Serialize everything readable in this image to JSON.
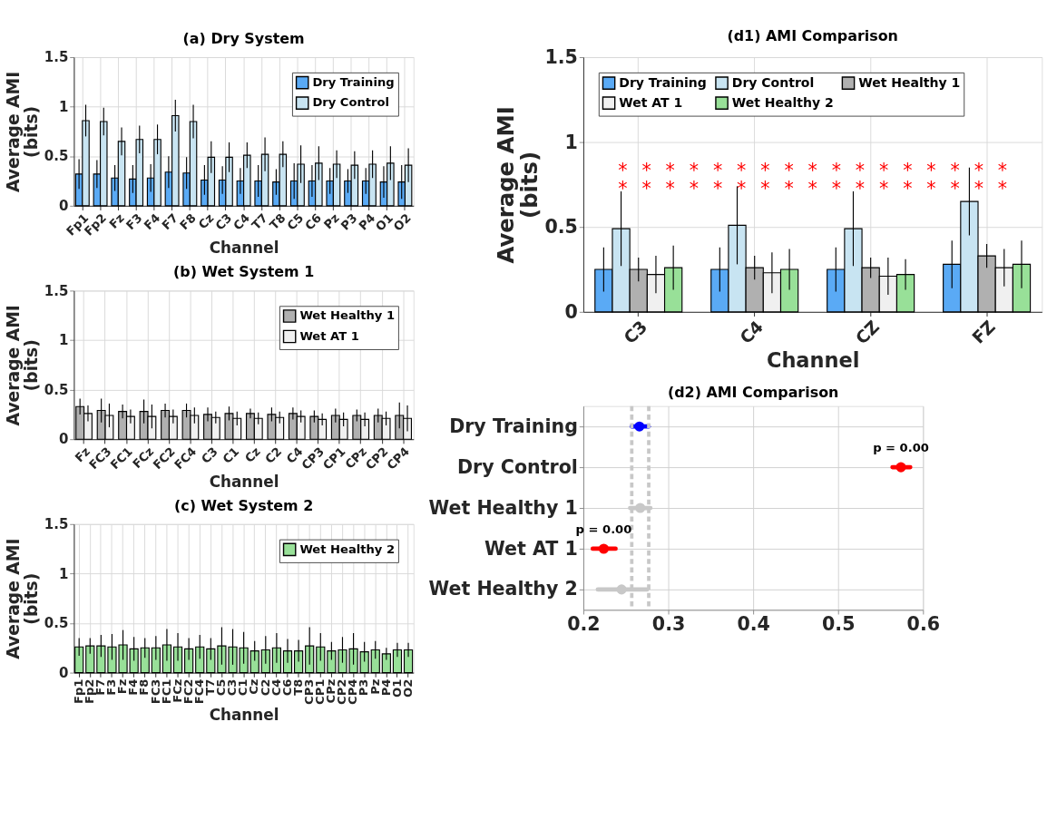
{
  "chart_data": [
    {
      "type": "bar",
      "title": "(a) Dry System",
      "xlabel": "Channel",
      "ylabel": "Average AMI\n(bits)",
      "categories": [
        "Fp1",
        "Fp2",
        "Fz",
        "F3",
        "F4",
        "F7",
        "F8",
        "Cz",
        "C3",
        "C4",
        "T7",
        "T8",
        "C5",
        "C6",
        "Pz",
        "P3",
        "P4",
        "O1",
        "O2"
      ],
      "series": [
        {
          "name": "Dry Training",
          "color": "#5aaaf5",
          "values": [
            0.32,
            0.32,
            0.28,
            0.27,
            0.28,
            0.34,
            0.33,
            0.26,
            0.26,
            0.25,
            0.25,
            0.24,
            0.25,
            0.25,
            0.25,
            0.25,
            0.25,
            0.24,
            0.24
          ],
          "errors": [
            0.15,
            0.14,
            0.13,
            0.14,
            0.14,
            0.16,
            0.16,
            0.15,
            0.14,
            0.13,
            0.16,
            0.13,
            0.18,
            0.16,
            0.13,
            0.12,
            0.13,
            0.16,
            0.17
          ]
        },
        {
          "name": "Dry Control",
          "color": "#c8e4f2",
          "values": [
            0.86,
            0.85,
            0.65,
            0.67,
            0.67,
            0.91,
            0.85,
            0.49,
            0.49,
            0.51,
            0.52,
            0.52,
            0.42,
            0.43,
            0.42,
            0.41,
            0.42,
            0.43,
            0.41
          ],
          "errors": [
            0.16,
            0.14,
            0.14,
            0.14,
            0.15,
            0.16,
            0.17,
            0.16,
            0.15,
            0.13,
            0.17,
            0.13,
            0.19,
            0.17,
            0.14,
            0.14,
            0.14,
            0.17,
            0.17
          ]
        }
      ],
      "ylim": [
        0,
        1.5
      ],
      "yticks": [
        0,
        0.5,
        1,
        1.5
      ],
      "grid": true,
      "legend": "top right"
    },
    {
      "type": "bar",
      "title": "(b) Wet System 1",
      "xlabel": "Channel",
      "ylabel": "Average AMI\n(bits)",
      "categories": [
        "Fz",
        "FC3",
        "FC1",
        "FCz",
        "FC2",
        "FC4",
        "C3",
        "C1",
        "Cz",
        "C2",
        "C4",
        "CP3",
        "CP1",
        "CPz",
        "CP2",
        "CP4"
      ],
      "series": [
        {
          "name": "Wet Healthy 1",
          "color": "#b0b0b0",
          "values": [
            0.33,
            0.29,
            0.28,
            0.28,
            0.29,
            0.29,
            0.25,
            0.26,
            0.26,
            0.25,
            0.26,
            0.23,
            0.24,
            0.24,
            0.24,
            0.24
          ],
          "errors": [
            0.08,
            0.12,
            0.07,
            0.12,
            0.07,
            0.07,
            0.07,
            0.07,
            0.05,
            0.07,
            0.06,
            0.06,
            0.07,
            0.06,
            0.07,
            0.13
          ]
        },
        {
          "name": "Wet AT 1",
          "color": "#f0f0f0",
          "values": [
            0.26,
            0.24,
            0.23,
            0.23,
            0.23,
            0.24,
            0.22,
            0.21,
            0.21,
            0.22,
            0.23,
            0.2,
            0.2,
            0.2,
            0.21,
            0.21
          ],
          "errors": [
            0.08,
            0.12,
            0.07,
            0.12,
            0.07,
            0.08,
            0.06,
            0.07,
            0.06,
            0.06,
            0.06,
            0.06,
            0.07,
            0.07,
            0.07,
            0.13
          ]
        }
      ],
      "ylim": [
        0,
        1.5
      ],
      "yticks": [
        0,
        0.5,
        1,
        1.5
      ],
      "grid": true,
      "legend": "top right"
    },
    {
      "type": "bar",
      "title": "(c) Wet System 2",
      "xlabel": "Channel",
      "ylabel": "Average AMI\n(bits)",
      "categories": [
        "Fp1",
        "Fp2",
        "F7",
        "F3",
        "Fz",
        "F4",
        "F8",
        "FC3",
        "FC1",
        "FCz",
        "FC2",
        "FC4",
        "T7",
        "C5",
        "C3",
        "C1",
        "Cz",
        "C2",
        "C4",
        "C6",
        "T8",
        "CP3",
        "CP1",
        "CPz",
        "CP2",
        "CP4",
        "P3",
        "Pz",
        "P4",
        "O1",
        "O2"
      ],
      "series": [
        {
          "name": "Wet Healthy 2",
          "color": "#98e098",
          "values": [
            0.26,
            0.27,
            0.27,
            0.26,
            0.28,
            0.24,
            0.25,
            0.25,
            0.28,
            0.26,
            0.24,
            0.26,
            0.24,
            0.27,
            0.26,
            0.25,
            0.22,
            0.23,
            0.25,
            0.22,
            0.22,
            0.27,
            0.26,
            0.22,
            0.23,
            0.24,
            0.21,
            0.23,
            0.19,
            0.23,
            0.23
          ],
          "errors": [
            0.09,
            0.08,
            0.11,
            0.13,
            0.15,
            0.12,
            0.1,
            0.12,
            0.16,
            0.14,
            0.11,
            0.12,
            0.11,
            0.19,
            0.18,
            0.16,
            0.1,
            0.14,
            0.15,
            0.12,
            0.11,
            0.19,
            0.14,
            0.09,
            0.13,
            0.16,
            0.1,
            0.09,
            0.06,
            0.07,
            0.07
          ]
        }
      ],
      "ylim": [
        0,
        1.5
      ],
      "yticks": [
        0,
        0.5,
        1,
        1.5
      ],
      "grid": true,
      "legend": "top right"
    },
    {
      "type": "bar",
      "title": "(d1) AMI Comparison",
      "xlabel": "Channel",
      "ylabel": "Average AMI\n(bits)",
      "categories": [
        "C3",
        "C4",
        "CZ",
        "FZ"
      ],
      "series": [
        {
          "name": "Dry Training",
          "color": "#5aaaf5",
          "values": [
            0.25,
            0.25,
            0.25,
            0.28
          ],
          "errors": [
            0.13,
            0.13,
            0.13,
            0.14
          ]
        },
        {
          "name": "Dry Control",
          "color": "#c8e4f2",
          "values": [
            0.49,
            0.51,
            0.49,
            0.65
          ],
          "errors": [
            0.22,
            0.23,
            0.22,
            0.2
          ]
        },
        {
          "name": "Wet Healthy 1",
          "color": "#b0b0b0",
          "values": [
            0.25,
            0.26,
            0.26,
            0.33
          ],
          "errors": [
            0.07,
            0.07,
            0.06,
            0.07
          ]
        },
        {
          "name": "Wet AT 1",
          "color": "#f0f0f0",
          "values": [
            0.22,
            0.23,
            0.21,
            0.26
          ],
          "errors": [
            0.11,
            0.12,
            0.11,
            0.11
          ]
        },
        {
          "name": "Wet Healthy 2",
          "color": "#98e098",
          "values": [
            0.26,
            0.25,
            0.22,
            0.28
          ],
          "errors": [
            0.13,
            0.12,
            0.09,
            0.14
          ]
        }
      ],
      "annotations": [
        "*",
        "*",
        "*",
        "*",
        "*",
        "*",
        "*",
        "*",
        "*",
        "*",
        "*",
        "*",
        "*",
        "*",
        "*",
        "*",
        "*",
        "*",
        "*",
        "*",
        "*",
        "*",
        "*",
        "*",
        "*",
        "*",
        "*",
        "*",
        "*",
        "*",
        "*",
        "*",
        "*",
        "*"
      ],
      "ylim": [
        0,
        1.5
      ],
      "yticks": [
        0,
        0.5,
        1,
        1.5
      ],
      "grid": true,
      "legend": "top left"
    },
    {
      "type": "scatter",
      "title": "(d2) AMI Comparison",
      "orientation": "horizontal",
      "categories": [
        "Dry Training",
        "Dry Control",
        "Wet Healthy 1",
        "Wet AT 1",
        "Wet Healthy 2"
      ],
      "values": [
        0.266,
        0.574,
        0.267,
        0.224,
        0.245
      ],
      "errors": [
        [
          0.257,
          0.277
        ],
        [
          0.564,
          0.585
        ],
        [
          0.255,
          0.279
        ],
        [
          0.211,
          0.238
        ],
        [
          0.217,
          0.275
        ]
      ],
      "colors": [
        "#0000ff",
        "#ff0000",
        "#c8c8c8",
        "#ff0000",
        "#c8c8c8"
      ],
      "ref_lines": [
        {
          "axis": "x",
          "value": 0.257,
          "color": "#c8c8c8",
          "line_style": "dashed"
        },
        {
          "axis": "x",
          "value": 0.277,
          "color": "#c8c8c8",
          "line_style": "dashed"
        }
      ],
      "annotations": [
        {
          "text": "p = 0.00",
          "x": 0.574,
          "y": "Dry Control"
        },
        {
          "text": "p = 0.00",
          "x": 0.224,
          "y": "Wet AT 1"
        }
      ],
      "xlim": [
        0.2,
        0.6
      ],
      "xticks": [
        0.2,
        0.3,
        0.4,
        0.5,
        0.6
      ],
      "grid": true,
      "marker": "circle"
    }
  ]
}
